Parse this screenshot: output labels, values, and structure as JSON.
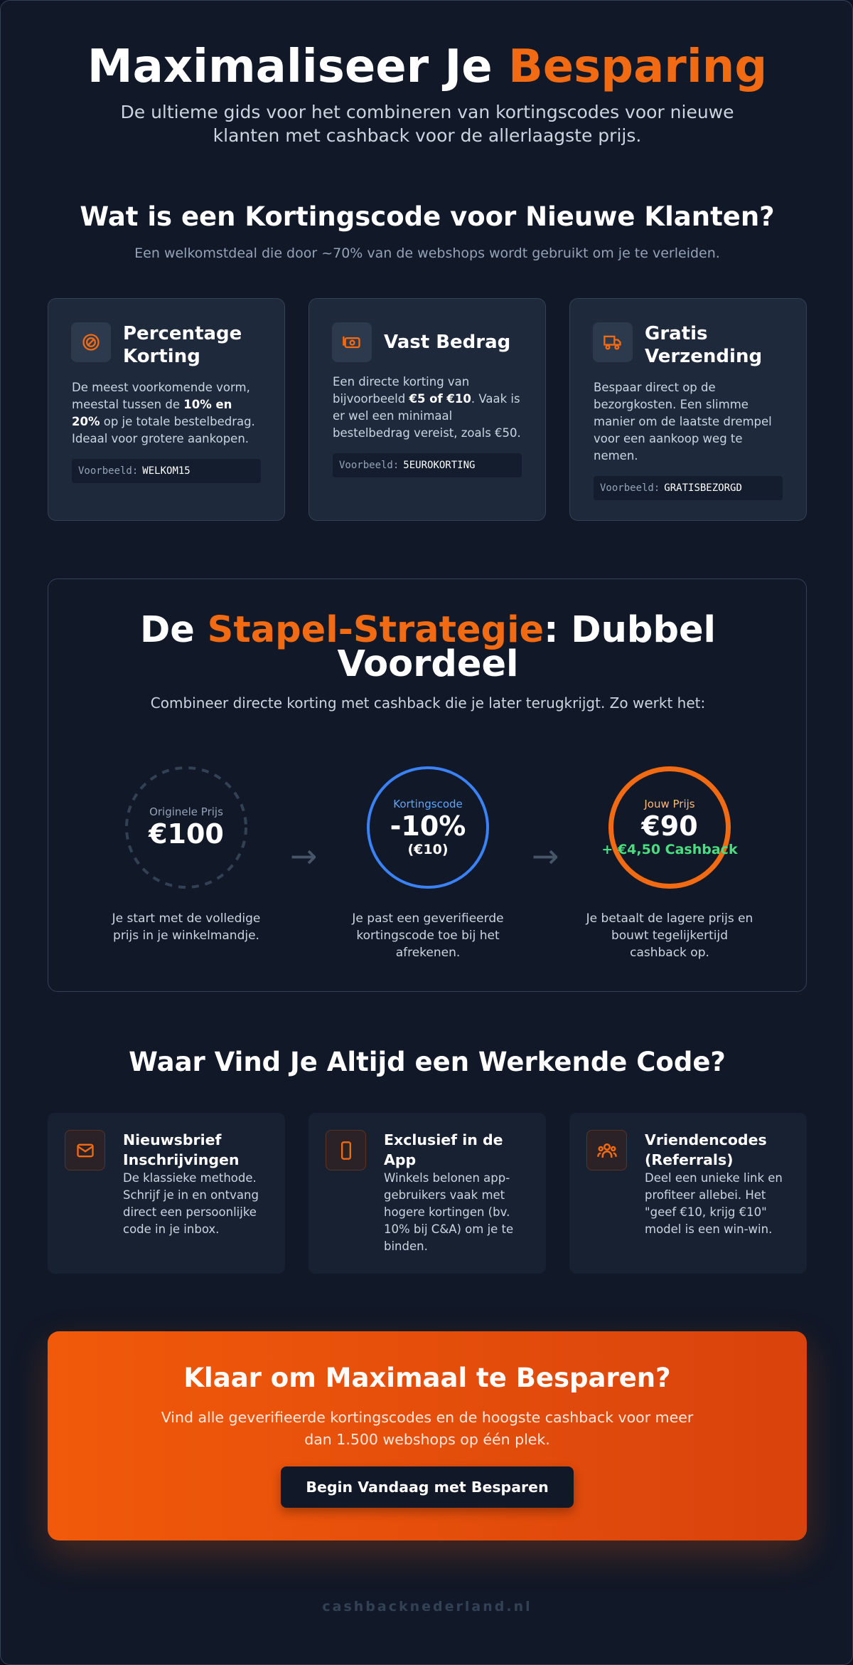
{
  "header": {
    "title_parts": [
      "Maximaliseer Je ",
      "Besparing"
    ],
    "subtitle": "De ultieme gids voor het combineren van kortingscodes voor nieuwe klanten met cashback voor de allerlaagste prijs."
  },
  "intro": {
    "heading": "Wat is een Kortingscode voor Nieuwe Klanten?",
    "subheading": "Een welkomstdeal die door ~70% van de webshops wordt gebruikt om je te verleiden."
  },
  "code_types": [
    {
      "title": "Percentage Korting",
      "body": [
        "De meest voorkomende vorm, meestal tussen de ",
        "10% en 20%",
        " op je totale bestelbedrag. Ideaal voor grotere aankopen."
      ],
      "example_label": "Voorbeeld:",
      "example_code": "WELKOM15"
    },
    {
      "title": "Vast Bedrag",
      "body": [
        "Een directe korting van bijvoorbeeld ",
        "€5 of €10",
        ". Vaak is er wel een minimaal bestelbedrag vereist, zoals €50."
      ],
      "example_label": "Voorbeeld:",
      "example_code": "5EUROKORTING"
    },
    {
      "title": "Gratis Verzending",
      "body": [
        "Bespaar direct op de bezorgkosten. Een slimme manier om de laatste drempel voor een aankoop weg te nemen."
      ],
      "example_label": "Voorbeeld:",
      "example_code": "GRATISBEZORGD"
    }
  ],
  "strategy": {
    "heading_parts": [
      "De ",
      "Stapel-Strategie",
      ": Dubbel Voordeel"
    ],
    "subheading": "Combineer directe korting met cashback die je later terugkrijgt. Zo werkt het:",
    "steps": [
      {
        "label": "Originele Prijs",
        "value": "€100",
        "caption": "Je start met de volledige prijs in je winkelmandje."
      },
      {
        "label": "Kortingscode",
        "value": "-10%",
        "detail": "(€10)",
        "caption": "Je past een geverifieerde kortingscode toe bij het afrekenen."
      },
      {
        "label": "Jouw Prijs",
        "value": "€90",
        "detail": "+ €4,50 Cashback",
        "caption": "Je betaalt de lagere prijs en bouwt tegelijkertijd cashback op."
      }
    ]
  },
  "sources": {
    "heading": "Waar Vind Je Altijd een Werkende Code?",
    "items": [
      {
        "title": "Nieuwsbrief Inschrijvingen",
        "body": "De klassieke methode. Schrijf je in en ontvang direct een persoonlijke code in je inbox."
      },
      {
        "title": "Exclusief in de App",
        "body": "Winkels belonen app-gebruikers vaak met hogere kortingen (bv. 10% bij C&A) om je te binden."
      },
      {
        "title": "Vriendencodes (Referrals)",
        "body": "Deel een unieke link en profiteer allebei. Het \"geef €10, krijg €10\" model is een win-win."
      }
    ]
  },
  "cta": {
    "title": "Klaar om Maximaal te Besparen?",
    "text": "Vind alle geverifieerde kortingscodes en de hoogste cashback voor meer dan 1.500 webshops op één plek.",
    "button": "Begin Vandaag met Besparen"
  },
  "footer": "cashbacknederland.nl"
}
